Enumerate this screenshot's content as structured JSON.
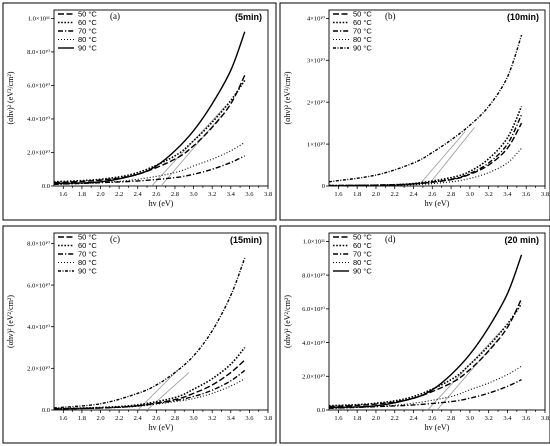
{
  "chart_data": [
    {
      "type": "line",
      "panel": "(a)",
      "time_label": "(5min)",
      "xlabel": "hv (eV)",
      "ylabel": "(αhν)² (eV²/cm²)",
      "xlim": [
        1.5,
        3.8
      ],
      "ylim": [
        0,
        105000000000.0
      ],
      "xticks": [
        1.6,
        1.8,
        2.0,
        2.2,
        2.4,
        2.6,
        2.8,
        3.0,
        3.2,
        3.4,
        3.6,
        3.8
      ],
      "xtick_labels": [
        "1.6",
        "1.8",
        "2.0",
        "2.2",
        "2.4",
        "2.6",
        "2.8",
        "3.0",
        "3.2",
        "3.4",
        "3.6",
        "3.8"
      ],
      "yticks": [
        0,
        20000000000.0,
        40000000000.0,
        60000000000.0,
        80000000000.0,
        100000000000.0
      ],
      "ytick_labels": [
        "0.0",
        "2.0×10¹⁰",
        "4.0×10¹⁰",
        "6.0×10¹⁰",
        "8.0×10¹⁰",
        "1.0×10¹¹"
      ],
      "series": [
        {
          "name": "50 °C",
          "style": "dash",
          "x": [
            1.5,
            2.0,
            2.4,
            2.8,
            3.0,
            3.2,
            3.4,
            3.55
          ],
          "y": [
            2000000000.0,
            3500000000.0,
            7000000000.0,
            16000000000.0,
            24000000000.0,
            35000000000.0,
            49000000000.0,
            66000000000.0
          ]
        },
        {
          "name": "60 °C",
          "style": "dotdense",
          "x": [
            1.5,
            2.0,
            2.4,
            2.8,
            3.0,
            3.2,
            3.4,
            3.55
          ],
          "y": [
            2500000000.0,
            4000000000.0,
            8000000000.0,
            18000000000.0,
            27000000000.0,
            38000000000.0,
            51000000000.0,
            63000000000.0
          ]
        },
        {
          "name": "70 °C",
          "style": "dashdot",
          "x": [
            1.5,
            2.0,
            2.4,
            2.8,
            3.0,
            3.2,
            3.4,
            3.55
          ],
          "y": [
            1000000000.0,
            2000000000.0,
            3000000000.0,
            5000000000.0,
            7000000000.0,
            10000000000.0,
            14000000000.0,
            18000000000.0
          ]
        },
        {
          "name": "80 °C",
          "style": "dot",
          "x": [
            1.5,
            2.0,
            2.4,
            2.8,
            3.0,
            3.2,
            3.4,
            3.55
          ],
          "y": [
            1000000000.0,
            2000000000.0,
            4000000000.0,
            8000000000.0,
            12000000000.0,
            16000000000.0,
            21000000000.0,
            26000000000.0
          ]
        },
        {
          "name": "90 °C",
          "style": "solid",
          "x": [
            1.5,
            2.0,
            2.4,
            2.6,
            2.8,
            3.0,
            3.2,
            3.4,
            3.55
          ],
          "y": [
            1500000000.0,
            2500000000.0,
            7000000000.0,
            12000000000.0,
            21000000000.0,
            33000000000.0,
            49000000000.0,
            69000000000.0,
            92000000000.0
          ]
        }
      ],
      "fits": [
        {
          "x": [
            2.55,
            3.35
          ],
          "y": [
            0,
            48000000000.0
          ]
        },
        {
          "x": [
            2.65,
            3.3
          ],
          "y": [
            0,
            42000000000.0
          ]
        }
      ]
    },
    {
      "type": "line",
      "panel": "(b)",
      "time_label": "(10min)",
      "xlabel": "hv (eV)",
      "ylabel": "(αhν)² (eV²/cm²)",
      "xlim": [
        1.5,
        3.8
      ],
      "ylim": [
        0,
        42000000000.0
      ],
      "xticks": [
        1.6,
        1.8,
        2.0,
        2.2,
        2.4,
        2.6,
        2.8,
        3.0,
        3.2,
        3.4,
        3.6,
        3.8
      ],
      "xtick_labels": [
        "1.6",
        "1.8",
        "2.0",
        "2.2",
        "2.4",
        "2.6",
        "2.8",
        "3.0",
        "3.2",
        "3.4",
        "3.6",
        "3.8"
      ],
      "yticks": [
        0,
        10000000000.0,
        20000000000.0,
        30000000000.0,
        40000000000.0
      ],
      "ytick_labels": [
        "0",
        "1×10¹⁰",
        "2×10¹⁰",
        "3×10¹⁰",
        "4×10¹⁰"
      ],
      "series": [
        {
          "name": "50 °C",
          "style": "dash",
          "x": [
            1.5,
            2.0,
            2.4,
            2.8,
            3.0,
            3.2,
            3.4,
            3.55
          ],
          "y": [
            100000000.0,
            200000000.0,
            500000000.0,
            1500000000.0,
            2800000000.0,
            5000000000.0,
            9000000000.0,
            15000000000.0
          ]
        },
        {
          "name": "60 °C",
          "style": "dotdense",
          "x": [
            1.5,
            2.0,
            2.4,
            2.8,
            3.0,
            3.2,
            3.4,
            3.55
          ],
          "y": [
            100000000.0,
            200000000.0,
            600000000.0,
            2000000000.0,
            3500000000.0,
            6500000000.0,
            11500000000.0,
            19000000000.0
          ]
        },
        {
          "name": "70 °C",
          "style": "dashdot",
          "x": [
            1.5,
            2.0,
            2.4,
            2.8,
            3.0,
            3.2,
            3.4,
            3.55
          ],
          "y": [
            100000000.0,
            200000000.0,
            500000000.0,
            1600000000.0,
            3000000000.0,
            5500000000.0,
            10000000000.0,
            17000000000.0
          ]
        },
        {
          "name": "80 °C",
          "style": "dot",
          "x": [
            1.5,
            2.0,
            2.4,
            2.8,
            3.0,
            3.2,
            3.4,
            3.55
          ],
          "y": [
            100000000.0,
            150000000.0,
            300000000.0,
            1000000000.0,
            1800000000.0,
            3200000000.0,
            5500000000.0,
            9000000000.0
          ]
        },
        {
          "name": "90 °C",
          "style": "dashdotdense",
          "x": [
            1.5,
            2.0,
            2.4,
            2.6,
            2.8,
            3.0,
            3.2,
            3.4,
            3.55
          ],
          "y": [
            1000000000.0,
            2600000000.0,
            5500000000.0,
            8000000000.0,
            11000000000.0,
            14500000000.0,
            19000000000.0,
            26000000000.0,
            36000000000.0
          ]
        }
      ],
      "fits": [
        {
          "x": [
            2.45,
            2.95
          ],
          "y": [
            0,
            13000000000.0
          ]
        },
        {
          "x": [
            2.55,
            3.05
          ],
          "y": [
            0,
            14000000000.0
          ]
        }
      ]
    },
    {
      "type": "line",
      "panel": "(c)",
      "time_label": "(15min)",
      "xlabel": "hv (eV)",
      "ylabel": "(αhν)² (eV²/cm²)",
      "xlim": [
        1.5,
        3.8
      ],
      "ylim": [
        0,
        85000000000.0
      ],
      "xticks": [
        1.6,
        1.8,
        2.0,
        2.2,
        2.4,
        2.6,
        2.8,
        3.0,
        3.2,
        3.4,
        3.6,
        3.8
      ],
      "xtick_labels": [
        "1.6",
        "1.8",
        "2.0",
        "2.2",
        "2.4",
        "2.6",
        "2.8",
        "3.0",
        "3.2",
        "3.4",
        "3.6",
        "3.8"
      ],
      "yticks": [
        0,
        20000000000.0,
        40000000000.0,
        60000000000.0,
        80000000000.0
      ],
      "ytick_labels": [
        "0.0",
        "2.0×10¹⁰",
        "4.0×10¹⁰",
        "6.0×10¹⁰",
        "8.0×10¹⁰"
      ],
      "series": [
        {
          "name": "50 °C",
          "style": "dash",
          "x": [
            1.5,
            2.0,
            2.4,
            2.8,
            3.0,
            3.2,
            3.4,
            3.55
          ],
          "y": [
            500000000.0,
            1000000000.0,
            2000000000.0,
            5000000000.0,
            8000000000.0,
            12000000000.0,
            18000000000.0,
            24000000000.0
          ]
        },
        {
          "name": "60 °C",
          "style": "dotdense",
          "x": [
            1.5,
            2.0,
            2.4,
            2.8,
            3.0,
            3.2,
            3.4,
            3.55
          ],
          "y": [
            600000000.0,
            1200000000.0,
            2500000000.0,
            6000000000.0,
            10000000000.0,
            15000000000.0,
            22000000000.0,
            30000000000.0
          ]
        },
        {
          "name": "70 °C",
          "style": "dashdot",
          "x": [
            1.5,
            2.0,
            2.4,
            2.8,
            3.0,
            3.2,
            3.4,
            3.55
          ],
          "y": [
            500000000.0,
            1000000000.0,
            2000000000.0,
            4500000000.0,
            6500000000.0,
            9500000000.0,
            14000000000.0,
            19000000000.0
          ]
        },
        {
          "name": "80 °C",
          "style": "dot",
          "x": [
            1.5,
            2.0,
            2.4,
            2.8,
            3.0,
            3.2,
            3.4,
            3.55
          ],
          "y": [
            500000000.0,
            900000000.0,
            1800000000.0,
            4000000000.0,
            5500000000.0,
            8000000000.0,
            11500000000.0,
            15000000000.0
          ]
        },
        {
          "name": "90 °C",
          "style": "dashdotdense",
          "x": [
            1.5,
            2.0,
            2.4,
            2.6,
            2.8,
            3.0,
            3.2,
            3.4,
            3.55
          ],
          "y": [
            1000000000.0,
            3000000000.0,
            8000000000.0,
            12000000000.0,
            18000000000.0,
            26000000000.0,
            38000000000.0,
            55000000000.0,
            73000000000.0
          ]
        }
      ],
      "fits": [
        {
          "x": [
            2.4,
            2.85
          ],
          "y": [
            0,
            20000000000.0
          ]
        },
        {
          "x": [
            2.5,
            2.95
          ],
          "y": [
            0,
            18000000000.0
          ]
        }
      ]
    },
    {
      "type": "line",
      "panel": "(d)",
      "time_label": "(20 min)",
      "xlabel": "hv (eV)",
      "ylabel": "(αhν)² (eV²/cm²)",
      "xlim": [
        1.5,
        3.8
      ],
      "ylim": [
        0,
        105000000000.0
      ],
      "xticks": [
        1.6,
        1.8,
        2.0,
        2.2,
        2.4,
        2.6,
        2.8,
        3.0,
        3.2,
        3.4,
        3.6,
        3.8
      ],
      "xtick_labels": [
        "1.6",
        "1.8",
        "2.0",
        "2.2",
        "2.4",
        "2.6",
        "2.8",
        "3.0",
        "3.2",
        "3.4",
        "3.6",
        "3.8"
      ],
      "yticks": [
        0,
        20000000000.0,
        40000000000.0,
        60000000000.0,
        80000000000.0,
        100000000000.0
      ],
      "ytick_labels": [
        "0.0",
        "2.0×10¹⁰",
        "4.0×10¹⁰",
        "6.0×10¹⁰",
        "8.0×10¹⁰",
        "1.0×10¹¹"
      ],
      "series": [
        {
          "name": "50 °C",
          "style": "dash",
          "x": [
            1.5,
            2.0,
            2.4,
            2.8,
            3.0,
            3.2,
            3.4,
            3.55
          ],
          "y": [
            2000000000.0,
            3500000000.0,
            7000000000.0,
            16000000000.0,
            24000000000.0,
            35000000000.0,
            49000000000.0,
            66000000000.0
          ]
        },
        {
          "name": "60 °C",
          "style": "dotdense",
          "x": [
            1.5,
            2.0,
            2.4,
            2.8,
            3.0,
            3.2,
            3.4,
            3.55
          ],
          "y": [
            2500000000.0,
            4000000000.0,
            8000000000.0,
            18000000000.0,
            27000000000.0,
            38000000000.0,
            51000000000.0,
            63000000000.0
          ]
        },
        {
          "name": "70 °C",
          "style": "dashdot",
          "x": [
            1.5,
            2.0,
            2.4,
            2.8,
            3.0,
            3.2,
            3.4,
            3.55
          ],
          "y": [
            1000000000.0,
            2000000000.0,
            3000000000.0,
            5000000000.0,
            7000000000.0,
            10000000000.0,
            14000000000.0,
            18000000000.0
          ]
        },
        {
          "name": "80 °C",
          "style": "dot",
          "x": [
            1.5,
            2.0,
            2.4,
            2.8,
            3.0,
            3.2,
            3.4,
            3.55
          ],
          "y": [
            1000000000.0,
            2000000000.0,
            4000000000.0,
            8000000000.0,
            12000000000.0,
            16000000000.0,
            21000000000.0,
            26000000000.0
          ]
        },
        {
          "name": "90 °C",
          "style": "solid",
          "x": [
            1.5,
            2.0,
            2.4,
            2.6,
            2.8,
            3.0,
            3.2,
            3.4,
            3.55
          ],
          "y": [
            1500000000.0,
            2500000000.0,
            7000000000.0,
            12000000000.0,
            21000000000.0,
            33000000000.0,
            49000000000.0,
            69000000000.0,
            92000000000.0
          ]
        }
      ],
      "fits": [
        {
          "x": [
            2.55,
            3.35
          ],
          "y": [
            0,
            48000000000.0
          ]
        },
        {
          "x": [
            2.65,
            3.3
          ],
          "y": [
            0,
            42000000000.0
          ]
        }
      ]
    }
  ]
}
